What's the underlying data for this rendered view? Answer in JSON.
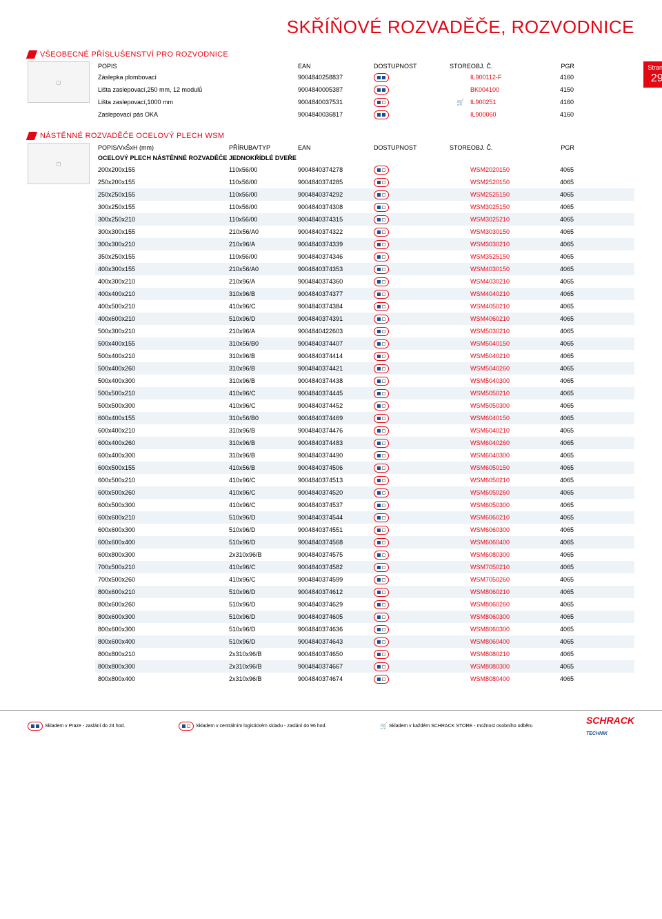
{
  "page": {
    "main_title": "SKŘÍŇOVÉ ROZVADĚČE, ROZVODNICE",
    "page_label": "Strana",
    "page_num": "29"
  },
  "section1": {
    "title": "VŠEOBECNÉ PŘÍSLUŠENSTVÍ PRO ROZVODNICE",
    "headers": {
      "popis": "POPIS",
      "ean": "EAN",
      "dost": "DOSTUPNOST",
      "store": "STORE",
      "obj": "OBJ. Č.",
      "pgr": "PGR"
    },
    "rows": [
      {
        "popis": "Záslepka plombovací",
        "ean": "9004840258837",
        "obj": "IL900112-F",
        "pgr": "4160",
        "stock": 2,
        "cart": false
      },
      {
        "popis": "Lišta zaslepovací,250 mm, 12 modulů",
        "ean": "9004840005387",
        "obj": "BK004100",
        "pgr": "4150",
        "stock": 2,
        "cart": false
      },
      {
        "popis": "Lišta zaslepovací,1000 mm",
        "ean": "9004840037531",
        "obj": "IL900251",
        "pgr": "4160",
        "stock": 1,
        "cart": true
      },
      {
        "popis": "Zaslepovací pás OKA",
        "ean": "9004840036817",
        "obj": "IL900060",
        "pgr": "4160",
        "stock": 2,
        "cart": false
      }
    ]
  },
  "section2": {
    "title": "NÁSTĚNNÉ ROZVADĚČE OCELOVÝ PLECH WSM",
    "headers": {
      "popis": "POPIS/VxŠxH (mm)",
      "prir": "PŘÍRUBA/TYP",
      "ean": "EAN",
      "dost": "DOSTUPNOST",
      "store": "STORE",
      "obj": "OBJ. Č.",
      "pgr": "PGR"
    },
    "subheader": "OCELOVÝ PLECH NÁSTĚNNÉ ROZVADĚČE JEDNOKŘÍDLÉ DVEŘE",
    "rows": [
      {
        "popis": "200x200x155",
        "prir": "110x56/00",
        "ean": "9004840374278",
        "obj": "WSM2020150",
        "pgr": "4065",
        "stock": 1,
        "shade": false
      },
      {
        "popis": "250x200x155",
        "prir": "110x56/00",
        "ean": "9004840374285",
        "obj": "WSM2520150",
        "pgr": "4065",
        "stock": 1,
        "shade": false
      },
      {
        "popis": "250x250x155",
        "prir": "110x56/00",
        "ean": "9004840374292",
        "obj": "WSM2525150",
        "pgr": "4065",
        "stock": 1,
        "shade": true
      },
      {
        "popis": "300x250x155",
        "prir": "110x56/00",
        "ean": "9004840374308",
        "obj": "WSM3025150",
        "pgr": "4065",
        "stock": 1,
        "shade": false
      },
      {
        "popis": "300x250x210",
        "prir": "110x56/00",
        "ean": "9004840374315",
        "obj": "WSM3025210",
        "pgr": "4065",
        "stock": 1,
        "shade": true
      },
      {
        "popis": "300x300x155",
        "prir": "210x56/A0",
        "ean": "9004840374322",
        "obj": "WSM3030150",
        "pgr": "4065",
        "stock": 1,
        "shade": false
      },
      {
        "popis": "300x300x210",
        "prir": "210x96/A",
        "ean": "9004840374339",
        "obj": "WSM3030210",
        "pgr": "4065",
        "stock": 1,
        "shade": true
      },
      {
        "popis": "350x250x155",
        "prir": "110x56/00",
        "ean": "9004840374346",
        "obj": "WSM3525150",
        "pgr": "4065",
        "stock": 1,
        "shade": false
      },
      {
        "popis": "400x300x155",
        "prir": "210x56/A0",
        "ean": "9004840374353",
        "obj": "WSM4030150",
        "pgr": "4065",
        "stock": 1,
        "shade": true
      },
      {
        "popis": "400x300x210",
        "prir": "210x96/A",
        "ean": "9004840374360",
        "obj": "WSM4030210",
        "pgr": "4065",
        "stock": 1,
        "shade": false
      },
      {
        "popis": "400x400x210",
        "prir": "310x96/B",
        "ean": "9004840374377",
        "obj": "WSM4040210",
        "pgr": "4065",
        "stock": 1,
        "shade": true
      },
      {
        "popis": "400x500x210",
        "prir": "410x96/C",
        "ean": "9004840374384",
        "obj": "WSM4050210",
        "pgr": "4065",
        "stock": 1,
        "shade": false
      },
      {
        "popis": "400x600x210",
        "prir": "510x96/D",
        "ean": "9004840374391",
        "obj": "WSM4060210",
        "pgr": "4065",
        "stock": 1,
        "shade": true
      },
      {
        "popis": "500x300x210",
        "prir": "210x96/A",
        "ean": "9004840422603",
        "obj": "WSM5030210",
        "pgr": "4065",
        "stock": 1,
        "shade": false
      },
      {
        "popis": "500x400x155",
        "prir": "310x56/B0",
        "ean": "9004840374407",
        "obj": "WSM5040150",
        "pgr": "4065",
        "stock": 1,
        "shade": true
      },
      {
        "popis": "500x400x210",
        "prir": "310x96/B",
        "ean": "9004840374414",
        "obj": "WSM5040210",
        "pgr": "4065",
        "stock": 1,
        "shade": false
      },
      {
        "popis": "500x400x260",
        "prir": "310x96/B",
        "ean": "9004840374421",
        "obj": "WSM5040260",
        "pgr": "4065",
        "stock": 1,
        "shade": true
      },
      {
        "popis": "500x400x300",
        "prir": "310x96/B",
        "ean": "9004840374438",
        "obj": "WSM5040300",
        "pgr": "4065",
        "stock": 1,
        "shade": false
      },
      {
        "popis": "500x500x210",
        "prir": "410x96/C",
        "ean": "9004840374445",
        "obj": "WSM5050210",
        "pgr": "4065",
        "stock": 1,
        "shade": true
      },
      {
        "popis": "500x500x300",
        "prir": "410x96/C",
        "ean": "9004840374452",
        "obj": "WSM5050300",
        "pgr": "4065",
        "stock": 1,
        "shade": false
      },
      {
        "popis": "600x400x155",
        "prir": "310x56/B0",
        "ean": "9004840374469",
        "obj": "WSM6040150",
        "pgr": "4065",
        "stock": 1,
        "shade": true
      },
      {
        "popis": "600x400x210",
        "prir": "310x96/B",
        "ean": "9004840374476",
        "obj": "WSM6040210",
        "pgr": "4065",
        "stock": 1,
        "shade": false
      },
      {
        "popis": "600x400x260",
        "prir": "310x96/B",
        "ean": "9004840374483",
        "obj": "WSM6040260",
        "pgr": "4065",
        "stock": 1,
        "shade": true
      },
      {
        "popis": "600x400x300",
        "prir": "310x96/B",
        "ean": "9004840374490",
        "obj": "WSM6040300",
        "pgr": "4065",
        "stock": 1,
        "shade": false
      },
      {
        "popis": "600x500x155",
        "prir": "410x56/B",
        "ean": "9004840374506",
        "obj": "WSM6050150",
        "pgr": "4065",
        "stock": 1,
        "shade": true
      },
      {
        "popis": "600x500x210",
        "prir": "410x96/C",
        "ean": "9004840374513",
        "obj": "WSM6050210",
        "pgr": "4065",
        "stock": 1,
        "shade": false
      },
      {
        "popis": "600x500x260",
        "prir": "410x96/C",
        "ean": "9004840374520",
        "obj": "WSM6050260",
        "pgr": "4065",
        "stock": 1,
        "shade": true
      },
      {
        "popis": " 600x500x300",
        "prir": "410x96/C",
        "ean": "9004840374537",
        "obj": "WSM6050300",
        "pgr": "4065",
        "stock": 1,
        "shade": false
      },
      {
        "popis": "600x600x210",
        "prir": "510x96/D",
        "ean": "9004840374544",
        "obj": "WSM6060210",
        "pgr": "4065",
        "stock": 1,
        "shade": true
      },
      {
        "popis": " 600x600x300",
        "prir": "510x96/D",
        "ean": "9004840374551",
        "obj": "WSM6060300",
        "pgr": "4065",
        "stock": 1,
        "shade": false
      },
      {
        "popis": "600x600x400",
        "prir": "510x96/D",
        "ean": "9004840374568",
        "obj": "WSM6060400",
        "pgr": "4065",
        "stock": 1,
        "shade": true
      },
      {
        "popis": "600x800x300",
        "prir": "2x310x96/B",
        "ean": "9004840374575",
        "obj": "WSM6080300",
        "pgr": "4065",
        "stock": 1,
        "shade": false
      },
      {
        "popis": "700x500x210",
        "prir": "410x96/C",
        "ean": "9004840374582",
        "obj": "WSM7050210",
        "pgr": "4065",
        "stock": 1,
        "shade": true
      },
      {
        "popis": "700x500x260",
        "prir": "410x96/C",
        "ean": "9004840374599",
        "obj": "WSM7050260",
        "pgr": "4065",
        "stock": 1,
        "shade": false
      },
      {
        "popis": "800x600x210",
        "prir": "510x96/D",
        "ean": "9004840374612",
        "obj": "WSM8060210",
        "pgr": "4065",
        "stock": 1,
        "shade": true
      },
      {
        "popis": "800x600x260",
        "prir": "510x96/D",
        "ean": "9004840374629",
        "obj": "WSM8060260",
        "pgr": "4065",
        "stock": 1,
        "shade": false
      },
      {
        "popis": "800x600x300",
        "prir": "510x96/D",
        "ean": "9004840374605",
        "obj": "WSM8060300",
        "pgr": "4065",
        "stock": 1,
        "shade": true
      },
      {
        "popis": " 800x600x300",
        "prir": "510x96/D",
        "ean": "9004840374636",
        "obj": "WSM8060300",
        "pgr": "4065",
        "stock": 1,
        "shade": false
      },
      {
        "popis": "800x600x400",
        "prir": "510x96/D",
        "ean": "9004840374643",
        "obj": "WSM8060400",
        "pgr": "4065",
        "stock": 1,
        "shade": true
      },
      {
        "popis": "800x800x210",
        "prir": "2x310x96/B",
        "ean": "9004840374650",
        "obj": "WSM8080210",
        "pgr": "4065",
        "stock": 1,
        "shade": false
      },
      {
        "popis": "800x800x300",
        "prir": "2x310x96/B",
        "ean": "9004840374667",
        "obj": "WSM8080300",
        "pgr": "4065",
        "stock": 1,
        "shade": true
      },
      {
        "popis": "800x800x400",
        "prir": "2x310x96/B",
        "ean": "9004840374674",
        "obj": "WSM8080400",
        "pgr": "4065",
        "stock": 1,
        "shade": false
      }
    ]
  },
  "footer": {
    "t1": "Skladem v Praze - zaslání do 24 hod.",
    "t2": "Skladem v centrálním logistickém skladu - zaslání do 96 hod.",
    "t3": "Skladem v každém SCHRACK STORE - možnost osobního odběru",
    "brand1": "SCHRACK",
    "brand2": "TECHNIK"
  },
  "colors": {
    "accent": "#e30613",
    "shade": "#eef3f8",
    "link": "#e30613"
  }
}
